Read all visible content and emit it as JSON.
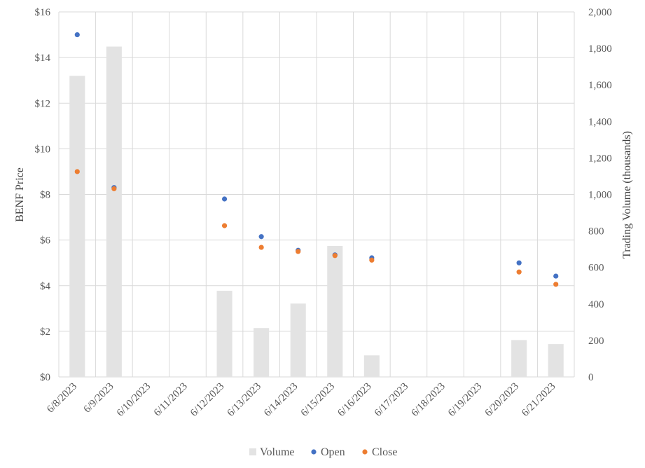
{
  "chart_data": {
    "type": "bar+scatter",
    "categories": [
      "6/8/2023",
      "6/9/2023",
      "6/10/2023",
      "6/11/2023",
      "6/12/2023",
      "6/13/2023",
      "6/14/2023",
      "6/15/2023",
      "6/16/2023",
      "6/17/2023",
      "6/18/2023",
      "6/19/2023",
      "6/20/2023",
      "6/21/2023"
    ],
    "series": [
      {
        "name": "Volume",
        "axis": "right",
        "kind": "bar",
        "color": "#e3e3e3",
        "values": [
          1650,
          1810,
          null,
          null,
          472,
          268,
          402,
          718,
          118,
          null,
          null,
          null,
          202,
          180
        ]
      },
      {
        "name": "Open",
        "axis": "left",
        "kind": "scatter",
        "color": "#4472c4",
        "values": [
          15.0,
          8.3,
          null,
          null,
          7.8,
          6.15,
          5.55,
          5.35,
          5.22,
          null,
          null,
          null,
          5.0,
          4.42
        ]
      },
      {
        "name": "Close",
        "axis": "left",
        "kind": "scatter",
        "color": "#ed7d31",
        "values": [
          9.0,
          8.25,
          null,
          null,
          6.63,
          5.68,
          5.5,
          5.32,
          5.12,
          null,
          null,
          null,
          4.6,
          4.06
        ]
      }
    ],
    "ylabel": "BENF Price",
    "y2label": "Trading Volume (thousands)",
    "ylim": [
      0,
      16
    ],
    "y2lim": [
      0,
      2000
    ],
    "y_ticks": [
      "$0",
      "$2",
      "$4",
      "$6",
      "$8",
      "$10",
      "$12",
      "$14",
      "$16"
    ],
    "y2_ticks": [
      "0",
      "200",
      "400",
      "600",
      "800",
      "1,000",
      "1,200",
      "1,400",
      "1,600",
      "1,800",
      "2,000"
    ],
    "grid": true,
    "legend": "bottom"
  }
}
